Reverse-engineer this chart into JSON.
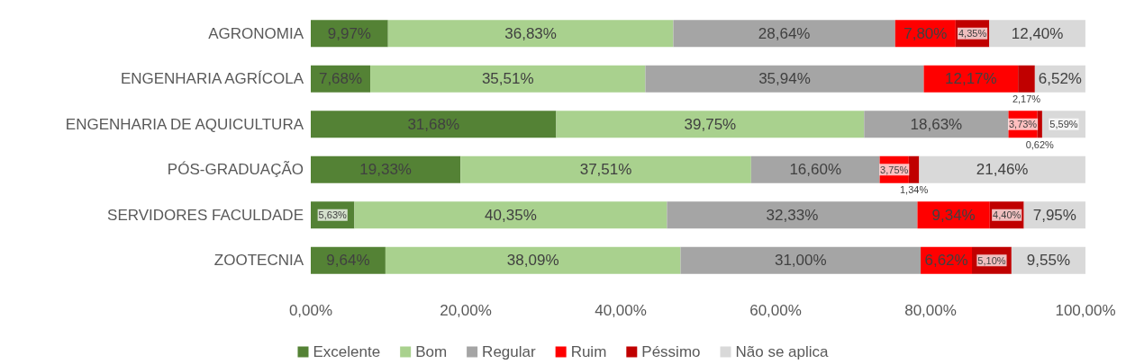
{
  "chart_data": {
    "type": "bar",
    "orientation": "horizontal",
    "stacked": true,
    "categories": [
      "AGRONOMIA",
      "ENGENHARIA AGRÍCOLA",
      "ENGENHARIA DE AQUICULTURA",
      "PÓS-GRADUAÇÃO",
      "SERVIDORES FACULDADE",
      "ZOOTECNIA"
    ],
    "series": [
      {
        "name": "Excelente",
        "color": "#548235",
        "values": [
          9.97,
          7.68,
          31.68,
          19.33,
          5.63,
          9.64
        ],
        "value_labels": [
          "9,97%",
          "7,68%",
          "31,68%",
          "19,33%",
          "5,63%",
          "9,64%"
        ]
      },
      {
        "name": "Bom",
        "color": "#a9d18e",
        "values": [
          36.83,
          35.51,
          39.75,
          37.51,
          40.35,
          38.09
        ],
        "value_labels": [
          "36,83%",
          "35,51%",
          "39,75%",
          "37,51%",
          "40,35%",
          "38,09%"
        ]
      },
      {
        "name": "Regular",
        "color": "#a5a5a5",
        "values": [
          28.64,
          35.94,
          18.63,
          16.6,
          32.33,
          31.0
        ],
        "value_labels": [
          "28,64%",
          "35,94%",
          "18,63%",
          "16,60%",
          "32,33%",
          "31,00%"
        ]
      },
      {
        "name": "Ruim",
        "color": "#ff0000",
        "values": [
          7.8,
          12.17,
          3.73,
          3.75,
          9.34,
          6.62
        ],
        "value_labels": [
          "7,80%",
          "12,17%",
          "3,73%",
          "3,75%",
          "9,34%",
          "6,62%"
        ]
      },
      {
        "name": "Péssimo",
        "color": "#c00000",
        "values": [
          4.35,
          2.17,
          0.62,
          1.34,
          4.4,
          5.1
        ],
        "value_labels": [
          "4,35%",
          "2,17%",
          "0,62%",
          "1,34%",
          "4,40%",
          "5,10%"
        ]
      },
      {
        "name": "Não se aplica",
        "color": "#d9d9d9",
        "values": [
          12.4,
          6.52,
          5.59,
          21.46,
          7.95,
          9.55
        ],
        "value_labels": [
          "12,40%",
          "6,52%",
          "5,59%",
          "21,46%",
          "7,95%",
          "9,55%"
        ]
      }
    ],
    "xlim": [
      0,
      100
    ],
    "xticks": [
      {
        "value": 0,
        "label": "0,00%"
      },
      {
        "value": 20,
        "label": "20,00%"
      },
      {
        "value": 40,
        "label": "40,00%"
      },
      {
        "value": 60,
        "label": "60,00%"
      },
      {
        "value": 80,
        "label": "80,00%"
      },
      {
        "value": 100,
        "label": "100,00%"
      }
    ],
    "grid": false,
    "legend": "bottom"
  }
}
